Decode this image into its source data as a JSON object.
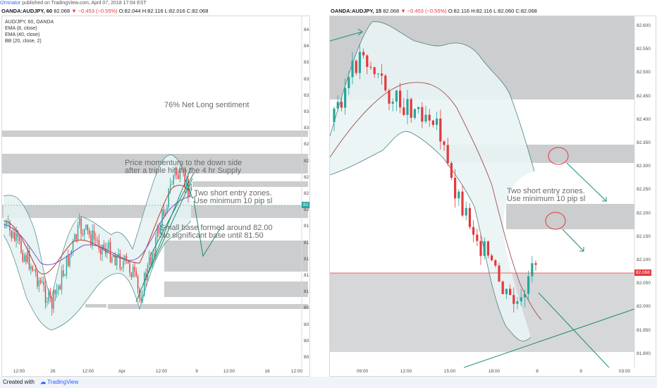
{
  "topbar": {
    "user": "t2minator",
    "published": "published on TradingView.com, April 07, 2018 17:04 EST"
  },
  "left_chart": {
    "header": {
      "symbol": "OANDA:AUDJPY, 60",
      "last": "82.068",
      "change": "−0.453 (−0.55%)",
      "ohlc": "O:82.044 H:82.116 L:82.016 C:82.068"
    },
    "legend": [
      "AUD/JPY, 60, OANDA",
      "EMA (8, close)",
      "EMA (40, close)",
      "BB (20, close, 2)"
    ],
    "y_labels": [
      "84.200",
      "84.000",
      "83.800",
      "83.600",
      "83.400",
      "83.200",
      "83.000",
      "82.800",
      "82.600",
      "82.400",
      "82.200",
      "82.000",
      "81.800",
      "81.600",
      "81.400",
      "81.200",
      "81.000",
      "80.800",
      "80.600",
      "80.400",
      "80.200"
    ],
    "x_labels": [
      "12:00",
      "26",
      "12:00",
      "Apr",
      "12:00",
      "9",
      "12:00",
      "16",
      "12:00"
    ],
    "price_tag": "82.068",
    "notes": {
      "sentiment": "76% Net Long sentiment",
      "momentum_1": "Price momentum to the down side",
      "momentum_2": "after a triple hit on the 4 hr Supply",
      "zones_1": "Two short entry zones.",
      "zones_2": "Use minimum 10 pip sl",
      "base_1": "Small base formed around 82.00",
      "base_2": "No significant base until 81.50"
    }
  },
  "right_chart": {
    "header": {
      "symbol": "OANDA:AUDJPY, 15",
      "last": "82.068",
      "change": "−0.453 (−0.55%)",
      "ohlc": "O:82.116 H:82.116 L:82.060 C:82.068"
    },
    "y_labels": [
      "82.600",
      "82.550",
      "82.500",
      "82.450",
      "82.400",
      "82.350",
      "82.300",
      "82.250",
      "82.200",
      "82.150",
      "82.100",
      "82.050",
      "82.000",
      "81.950",
      "81.900"
    ],
    "x_labels": [
      "09:00",
      "12:00",
      "15:00",
      "18:00",
      "8",
      "9",
      "03:00"
    ],
    "price_tag": "82.068",
    "notes": {
      "zones_1": "Two short entry zones.",
      "zones_2": "Use minimum 10 pip sl"
    }
  },
  "footer": {
    "created_with": "Created with",
    "brand": "TradingView"
  },
  "colors": {
    "up": "#26a69a",
    "down": "#e5383b",
    "zone": "#b9bcbf",
    "annotation": "#1e8c74",
    "bands": "#5f8f8f"
  }
}
